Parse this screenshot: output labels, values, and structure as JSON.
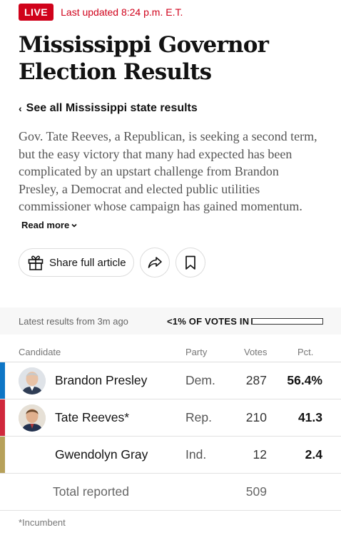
{
  "live": {
    "badge": "LIVE",
    "updated": "Last updated 8:24 p.m. E.T."
  },
  "headline": "Mississippi Governor Election Results",
  "see_all": {
    "chevron": "‹",
    "label": "See all Mississippi state results"
  },
  "summary": {
    "text": "Gov. Tate Reeves, a Republican, is seeking a second term, but the easy victory that many had expected has been complicated by an upstart challenge from Brandon Presley, a Democrat and elected public utilities commissioner whose campaign has gained momentum.",
    "read_more": "Read more"
  },
  "actions": {
    "share_full_article": "Share full article",
    "icons": [
      "gift-icon",
      "share-arrow-icon",
      "bookmark-icon"
    ]
  },
  "results": {
    "latest": "Latest results from 3m ago",
    "votes_in": "<1% OF VOTES IN",
    "votes_in_fraction": 0.005
  },
  "table": {
    "headers": {
      "candidate": "Candidate",
      "party": "Party",
      "votes": "Votes",
      "pct": "Pct."
    },
    "rows": [
      {
        "name": "Brandon Presley",
        "party": "Dem.",
        "votes": "287",
        "pct": "56.4%",
        "color": "#0e76c6",
        "has_photo": true
      },
      {
        "name": "Tate Reeves*",
        "party": "Rep.",
        "votes": "210",
        "pct": "41.3",
        "color": "#d0283c",
        "has_photo": true
      },
      {
        "name": "Gwendolyn Gray",
        "party": "Ind.",
        "votes": "12",
        "pct": "2.4",
        "color": "#b7a15a",
        "has_photo": false
      }
    ],
    "total": {
      "label": "Total reported",
      "votes": "509"
    }
  },
  "footnote": "*Incumbent",
  "colors": {
    "live_red": "#d0021b",
    "dem_blue": "#0e76c6",
    "rep_red": "#d0283c",
    "ind_gold": "#b7a15a"
  }
}
